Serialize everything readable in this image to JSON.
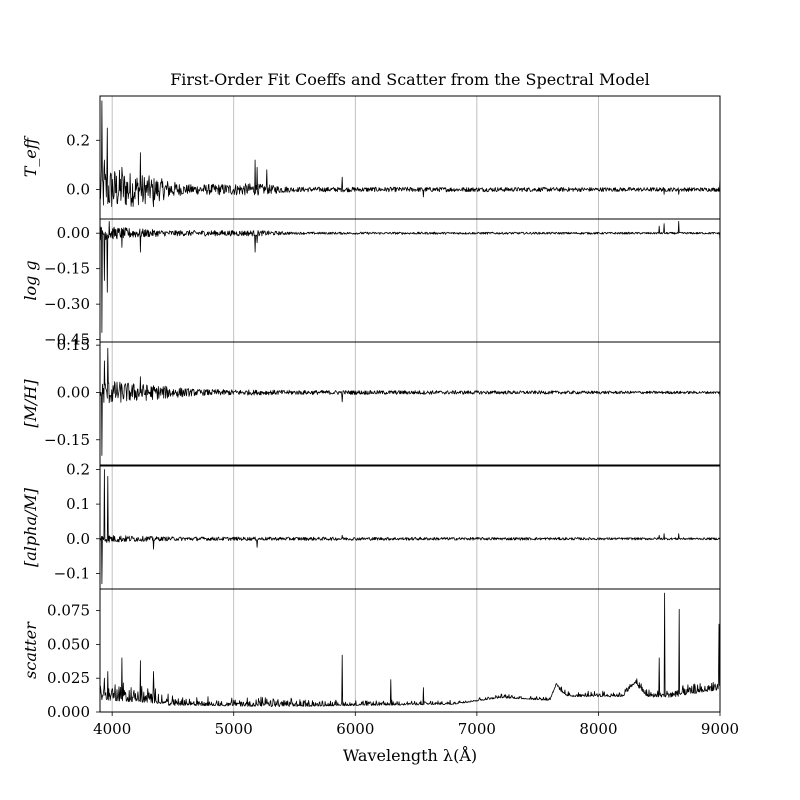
{
  "chart_data": {
    "type": "line",
    "title": "First-Order Fit Coeffs and Scatter from the Spectral Model",
    "xlabel": "Wavelength λ(Å)",
    "xlim": [
      3900,
      9000
    ],
    "xticks": [
      4000,
      5000,
      6000,
      7000,
      8000,
      9000
    ],
    "xtick_labels": [
      "4000",
      "5000",
      "6000",
      "7000",
      "8000",
      "9000"
    ],
    "grid": "vertical",
    "panels": [
      {
        "ylabel": "T_eff",
        "ylim": [
          -0.12,
          0.38
        ],
        "yticks": [
          0.0,
          0.2
        ],
        "ytick_labels": [
          "0.0",
          "0.2"
        ],
        "noise": [
          [
            3900,
            0.1
          ],
          [
            4450,
            0.04
          ],
          [
            4600,
            0.02
          ],
          [
            5150,
            0.025
          ],
          [
            5500,
            0.01
          ],
          [
            9000,
            0.008
          ]
        ],
        "features": [
          [
            3915,
            0.36
          ],
          [
            3935,
            0.12
          ],
          [
            3960,
            0.25
          ],
          [
            3970,
            -0.05
          ],
          [
            4080,
            0.09
          ],
          [
            4230,
            0.15
          ],
          [
            4250,
            -0.05
          ],
          [
            4340,
            -0.07
          ],
          [
            5175,
            0.12
          ],
          [
            5190,
            0.09
          ],
          [
            5270,
            0.08
          ],
          [
            5890,
            0.05
          ],
          [
            6560,
            -0.03
          ],
          [
            8540,
            -0.02
          ],
          [
            8660,
            -0.02
          ],
          [
            9000,
            0.05
          ]
        ]
      },
      {
        "ylabel": "log g",
        "ylim": [
          -0.46,
          0.06
        ],
        "yticks": [
          0.0,
          -0.15,
          -0.3,
          -0.45
        ],
        "ytick_labels": [
          "0.00",
          "−0.15",
          "−0.30",
          "−0.45"
        ],
        "noise": [
          [
            3900,
            0.03
          ],
          [
            4450,
            0.012
          ],
          [
            5200,
            0.012
          ],
          [
            5500,
            0.005
          ],
          [
            9000,
            0.004
          ]
        ],
        "features": [
          [
            3915,
            -0.42
          ],
          [
            3935,
            -0.2
          ],
          [
            3960,
            -0.25
          ],
          [
            3975,
            0.05
          ],
          [
            4080,
            -0.06
          ],
          [
            4230,
            -0.08
          ],
          [
            5175,
            -0.08
          ],
          [
            5190,
            -0.04
          ],
          [
            8500,
            0.03
          ],
          [
            8540,
            0.04
          ],
          [
            8660,
            0.05
          ],
          [
            9000,
            -0.04
          ]
        ]
      },
      {
        "ylabel": "[M/H]",
        "ylim": [
          -0.23,
          0.16
        ],
        "yticks": [
          0.15,
          0.0,
          -0.15
        ],
        "ytick_labels": [
          "0.15",
          "0.00",
          "−0.15"
        ],
        "noise": [
          [
            3900,
            0.04
          ],
          [
            4450,
            0.02
          ],
          [
            4700,
            0.01
          ],
          [
            5500,
            0.007
          ],
          [
            9000,
            0.004
          ]
        ],
        "features": [
          [
            3915,
            -0.2
          ],
          [
            3935,
            0.1
          ],
          [
            3965,
            0.14
          ],
          [
            4230,
            0.05
          ],
          [
            5890,
            -0.03
          ],
          [
            9000,
            -0.02
          ]
        ]
      },
      {
        "ylabel": "[alpha/M]",
        "ylim": [
          -0.145,
          0.21
        ],
        "yticks": [
          0.2,
          0.1,
          0.0,
          -0.1
        ],
        "ytick_labels": [
          "0.2",
          "0.1",
          "0.0",
          "−0.1"
        ],
        "noise": [
          [
            3900,
            0.012
          ],
          [
            4400,
            0.006
          ],
          [
            5200,
            0.005
          ],
          [
            9000,
            0.003
          ]
        ],
        "features": [
          [
            3915,
            -0.13
          ],
          [
            3935,
            0.2
          ],
          [
            3965,
            0.18
          ],
          [
            4340,
            -0.03
          ],
          [
            5190,
            -0.025
          ],
          [
            5890,
            0.01
          ],
          [
            8500,
            0.01
          ],
          [
            8540,
            0.015
          ],
          [
            8660,
            0.015
          ]
        ]
      },
      {
        "ylabel": "scatter",
        "ylim": [
          0.0,
          0.091
        ],
        "yticks": [
          0.0,
          0.025,
          0.05,
          0.075
        ],
        "ytick_labels": [
          "0.000",
          "0.025",
          "0.050",
          "0.075"
        ],
        "baseline": [
          [
            3900,
            0.012
          ],
          [
            4400,
            0.008
          ],
          [
            4500,
            0.006
          ],
          [
            5500,
            0.005
          ],
          [
            6800,
            0.006
          ],
          [
            7200,
            0.011
          ],
          [
            7600,
            0.009
          ],
          [
            7650,
            0.02
          ],
          [
            7700,
            0.015
          ],
          [
            7750,
            0.012
          ],
          [
            8200,
            0.012
          ],
          [
            8300,
            0.022
          ],
          [
            8400,
            0.012
          ],
          [
            8600,
            0.012
          ],
          [
            8800,
            0.015
          ],
          [
            9000,
            0.018
          ]
        ],
        "noise": [
          [
            3900,
            0.012
          ],
          [
            4450,
            0.007
          ],
          [
            4600,
            0.004
          ],
          [
            5300,
            0.005
          ],
          [
            5800,
            0.003
          ],
          [
            6800,
            0.002
          ],
          [
            7200,
            0.002
          ],
          [
            8200,
            0.003
          ],
          [
            8400,
            0.004
          ],
          [
            9000,
            0.006
          ]
        ],
        "features": [
          [
            3935,
            0.025
          ],
          [
            3965,
            0.03
          ],
          [
            4080,
            0.04
          ],
          [
            4230,
            0.038
          ],
          [
            4340,
            0.03
          ],
          [
            5890,
            0.042
          ],
          [
            6290,
            0.024
          ],
          [
            6560,
            0.018
          ],
          [
            8500,
            0.04
          ],
          [
            8542,
            0.088
          ],
          [
            8662,
            0.076
          ],
          [
            8990,
            0.065
          ],
          [
            9000,
            0.082
          ]
        ]
      }
    ]
  }
}
